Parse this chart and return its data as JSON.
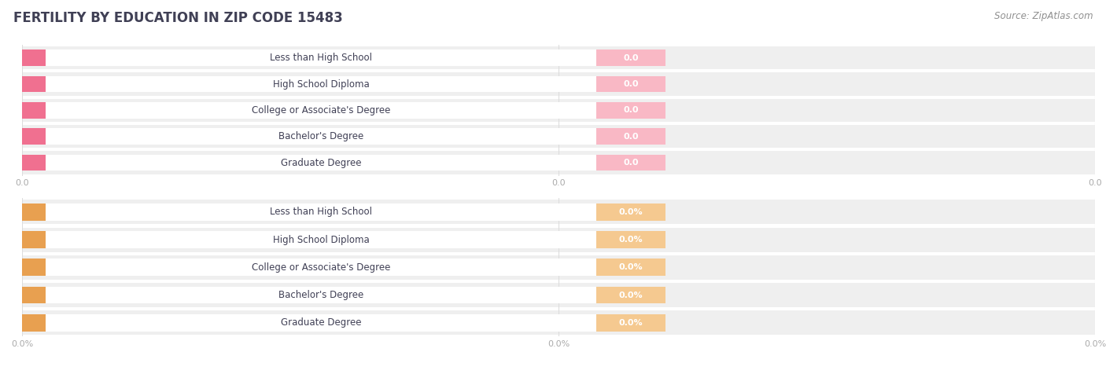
{
  "title": "FERTILITY BY EDUCATION IN ZIP CODE 15483",
  "source": "Source: ZipAtlas.com",
  "categories": [
    "Less than High School",
    "High School Diploma",
    "College or Associate's Degree",
    "Bachelor's Degree",
    "Graduate Degree"
  ],
  "top_values": [
    0.0,
    0.0,
    0.0,
    0.0,
    0.0
  ],
  "bottom_values": [
    0.0,
    0.0,
    0.0,
    0.0,
    0.0
  ],
  "top_tick_labels": [
    "0.0",
    "0.0",
    "0.0"
  ],
  "bottom_tick_labels": [
    "0.0%",
    "0.0%",
    "0.0%"
  ],
  "top_bar_face_color": "#f9b8c5",
  "top_bar_left_cap_color": "#f07090",
  "top_value_text_color": "#e06080",
  "bottom_bar_face_color": "#f5c990",
  "bottom_bar_left_cap_color": "#e8a050",
  "bottom_value_text_color": "#c88030",
  "background_color": "#ffffff",
  "row_bg_color": "#efefef",
  "row_gap_color": "#ffffff",
  "title_color": "#404055",
  "source_color": "#909090",
  "label_color": "#404055",
  "tick_color": "#aaaaaa",
  "grid_color": "#dddddd",
  "title_fontsize": 12,
  "source_fontsize": 8.5,
  "label_fontsize": 8.5,
  "tick_fontsize": 8,
  "value_fontsize": 8
}
